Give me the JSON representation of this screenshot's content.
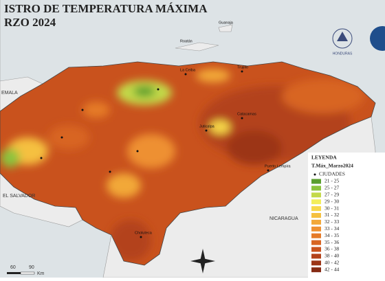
{
  "header": {
    "title": "ISTRO DE TEMPERATURA MÁXIMA",
    "subtitle": "RZO 2024"
  },
  "logo": {
    "label": "HONDURAS"
  },
  "places": [
    {
      "label": "EMALA"
    },
    {
      "label": "EL SALVADOR"
    },
    {
      "label": "NICARAGUA"
    },
    {
      "label": "Guanaja"
    },
    {
      "label": "Roatán"
    },
    {
      "label": "La Ceiba"
    },
    {
      "label": "Trujillo"
    },
    {
      "label": "Catacamas"
    },
    {
      "label": "Juticalpa"
    },
    {
      "label": "Puerto Lempira"
    },
    {
      "label": "Choluteca"
    }
  ],
  "legend": {
    "title": "LEYENDA",
    "subtitle": "T.Máx_Marzo2024",
    "cities": "CIUDADES",
    "items": [
      {
        "label": "21 - 25",
        "color": "#5a9e2e"
      },
      {
        "label": "25 - 27",
        "color": "#8cc43c"
      },
      {
        "label": "27 - 29",
        "color": "#c3d94a"
      },
      {
        "label": "29 - 30",
        "color": "#f3ee5a"
      },
      {
        "label": "30 - 31",
        "color": "#f7d84a"
      },
      {
        "label": "31 - 32",
        "color": "#f5c040"
      },
      {
        "label": "32 - 33",
        "color": "#f2a838"
      },
      {
        "label": "33 - 34",
        "color": "#ee9030"
      },
      {
        "label": "34 - 35",
        "color": "#e57a28"
      },
      {
        "label": "35 - 36",
        "color": "#d86522"
      },
      {
        "label": "36 - 38",
        "color": "#c9521d"
      },
      {
        "label": "38 - 40",
        "color": "#b3421a"
      },
      {
        "label": "40 - 42",
        "color": "#9c3516"
      },
      {
        "label": "42 - 44",
        "color": "#852a13"
      }
    ]
  },
  "scale": {
    "labels": [
      "60",
      "90"
    ],
    "unit": "Km"
  }
}
